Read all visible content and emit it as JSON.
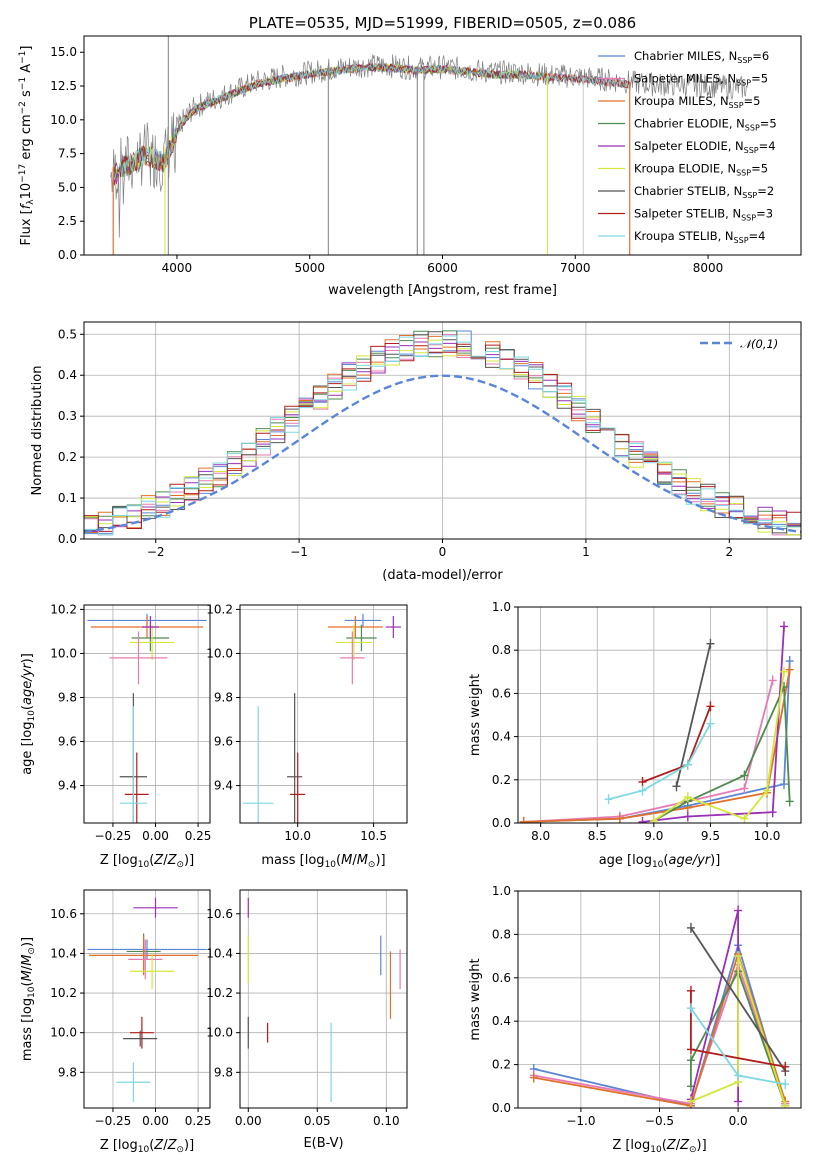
{
  "colors": {
    "Chabrier MILES": "#5b86d6",
    "Salpeter MILES": "#e67ab4",
    "Kroupa MILES": "#e0702a",
    "Chabrier ELODIE": "#4f8a50",
    "Salpeter ELODIE": "#9a2fb8",
    "Kroupa ELODIE": "#d4e63a",
    "Chabrier STELIB": "#555555",
    "Salpeter STELIB": "#b21c1c",
    "Kroupa STELIB": "#7fd8df"
  },
  "chart_data": [
    {
      "id": "spectrum",
      "type": "line",
      "title": "PLATE=0535, MJD=51999, FIBERID=0505, z=0.086",
      "xlabel": "wavelength [Angstrom, rest frame]",
      "ylabel": "Flux [f_λ 10^-17 erg cm^-2 s^-1 A^-1]",
      "xlim": [
        3300,
        8700
      ],
      "ylim": [
        0,
        16.2
      ],
      "xticks": [
        4000,
        5000,
        6000,
        7000,
        8000
      ],
      "yticks": [
        0.0,
        2.5,
        5.0,
        7.5,
        10.0,
        12.5,
        15.0
      ],
      "legend_position": "right",
      "legend": [
        {
          "model": "Chabrier MILES",
          "n": 6
        },
        {
          "model": "Salpeter MILES",
          "n": 5
        },
        {
          "model": "Kroupa MILES",
          "n": 5
        },
        {
          "model": "Chabrier ELODIE",
          "n": 5
        },
        {
          "model": "Salpeter ELODIE",
          "n": 4
        },
        {
          "model": "Kroupa ELODIE",
          "n": 5
        },
        {
          "model": "Chabrier STELIB",
          "n": 2
        },
        {
          "model": "Salpeter STELIB",
          "n": 3
        },
        {
          "model": "Kroupa STELIB",
          "n": 4
        }
      ],
      "continuum": {
        "x": [
          3500,
          3550,
          3600,
          3650,
          3700,
          3750,
          3800,
          3850,
          3900,
          3950,
          4000,
          4050,
          4100,
          4150,
          4200,
          4300,
          4400,
          4500,
          4600,
          4800,
          5000,
          5200,
          5400,
          5600,
          5800,
          6000,
          6200,
          6400,
          6600,
          6800,
          7000,
          7200,
          7400,
          7600,
          7800,
          8000,
          8200,
          8400
        ],
        "y": [
          5.8,
          6.2,
          6.7,
          6.8,
          7.2,
          7.5,
          7.4,
          7.2,
          7.0,
          8.0,
          9.3,
          10.0,
          10.6,
          11.0,
          11.2,
          11.6,
          12.0,
          12.4,
          12.8,
          13.2,
          13.5,
          13.8,
          14.0,
          14.0,
          13.8,
          13.9,
          13.7,
          13.5,
          13.5,
          13.3,
          13.2,
          13.0,
          12.8,
          12.6,
          12.6,
          12.5,
          12.4,
          12.3
        ]
      },
      "spikes": [
        {
          "x": 3935,
          "y0": 0,
          "y1": 16.2,
          "color": "#808080"
        },
        {
          "x": 3910,
          "y0": 0,
          "y1": 8.0,
          "color": "#d4e63a"
        },
        {
          "x": 5140,
          "y0": 0,
          "y1": 14.0,
          "color": "#808080"
        },
        {
          "x": 5810,
          "y0": 0,
          "y1": 14.0,
          "color": "#808080"
        },
        {
          "x": 5860,
          "y0": 0,
          "y1": 14.0,
          "color": "#808080"
        },
        {
          "x": 6790,
          "y0": 0,
          "y1": 13.5,
          "color": "#d4e63a"
        },
        {
          "x": 7060,
          "y0": 0,
          "y1": 13.2,
          "color": "#cccccc"
        }
      ],
      "observed_range": [
        3500,
        8300
      ],
      "model_range": [
        3520,
        7410
      ]
    },
    {
      "id": "residuals",
      "type": "bar",
      "xlabel": "(data-model)/error",
      "ylabel": "Normed distribution",
      "xlim": [
        -2.5,
        2.5
      ],
      "ylim": [
        0,
        0.53
      ],
      "xticks": [
        -2,
        -1,
        0,
        1,
        2
      ],
      "yticks": [
        0.0,
        0.1,
        0.2,
        0.3,
        0.4,
        0.5
      ],
      "reference": {
        "label": "𝒩(0,1)",
        "mean": 0,
        "sigma": 1,
        "color": "#5b86d6"
      },
      "legend_position": "top-right"
    },
    {
      "id": "age-Z",
      "type": "scatter",
      "xlabel": "Z [log10(Z/Z_sun)]",
      "ylabel": "age  [log10(age/yr)]",
      "xlim": [
        -0.42,
        0.32
      ],
      "ylim": [
        9.23,
        10.22
      ],
      "xticks": [
        -0.25,
        0.0,
        0.25
      ],
      "yticks": [
        9.4,
        9.6,
        9.8,
        10.0,
        10.2
      ],
      "points": [
        {
          "model": "Chabrier MILES",
          "x": -0.05,
          "y": 10.15,
          "xerr": 0.35,
          "yerr": 0.03
        },
        {
          "model": "Kroupa MILES",
          "x": -0.05,
          "y": 10.12,
          "xerr": 0.33,
          "yerr": 0.05
        },
        {
          "model": "Chabrier ELODIE",
          "x": -0.03,
          "y": 10.07,
          "xerr": 0.11,
          "yerr": 0.06
        },
        {
          "model": "Kroupa ELODIE",
          "x": -0.02,
          "y": 10.05,
          "xerr": 0.13,
          "yerr": 0.08
        },
        {
          "model": "Salpeter MILES",
          "x": -0.1,
          "y": 9.98,
          "xerr": 0.17,
          "yerr": 0.12
        },
        {
          "model": "Salpeter ELODIE",
          "x": -0.03,
          "y": 10.12,
          "xerr": 0.05,
          "yerr": 0.05
        },
        {
          "model": "Chabrier STELIB",
          "x": -0.13,
          "y": 9.44,
          "xerr": 0.08,
          "yerr": 0.38
        },
        {
          "model": "Salpeter STELIB",
          "x": -0.11,
          "y": 9.36,
          "xerr": 0.07,
          "yerr": 0.19
        },
        {
          "model": "Kroupa STELIB",
          "x": -0.13,
          "y": 9.32,
          "xerr": 0.08,
          "yerr": 0.44
        }
      ]
    },
    {
      "id": "age-mass",
      "type": "scatter",
      "xlabel": "mass [log10(M/M_sun)]",
      "ylabel": "",
      "xlim": [
        9.62,
        10.72
      ],
      "ylim": [
        9.23,
        10.22
      ],
      "xticks": [
        10.0,
        10.5
      ],
      "yticks": [
        9.4,
        9.6,
        9.8,
        10.0,
        10.2
      ],
      "points": [
        {
          "model": "Chabrier MILES",
          "x": 10.43,
          "y": 10.15,
          "xerr": 0.12,
          "yerr": 0.03
        },
        {
          "model": "Kroupa MILES",
          "x": 10.38,
          "y": 10.12,
          "xerr": 0.18,
          "yerr": 0.05
        },
        {
          "model": "Chabrier ELODIE",
          "x": 10.42,
          "y": 10.07,
          "xerr": 0.1,
          "yerr": 0.06
        },
        {
          "model": "Kroupa ELODIE",
          "x": 10.37,
          "y": 10.05,
          "xerr": 0.12,
          "yerr": 0.08
        },
        {
          "model": "Salpeter MILES",
          "x": 10.36,
          "y": 9.98,
          "xerr": 0.08,
          "yerr": 0.12
        },
        {
          "model": "Salpeter ELODIE",
          "x": 10.63,
          "y": 10.12,
          "xerr": 0.05,
          "yerr": 0.05
        },
        {
          "model": "Chabrier STELIB",
          "x": 9.98,
          "y": 9.44,
          "xerr": 0.05,
          "yerr": 0.38
        },
        {
          "model": "Salpeter STELIB",
          "x": 10.0,
          "y": 9.36,
          "xerr": 0.05,
          "yerr": 0.19
        },
        {
          "model": "Kroupa STELIB",
          "x": 9.74,
          "y": 9.32,
          "xerr": 0.1,
          "yerr": 0.44
        }
      ]
    },
    {
      "id": "weight-age",
      "type": "line",
      "xlabel": "age  [log10(age/yr)]",
      "ylabel": "mass weight",
      "xlim": [
        7.8,
        10.3
      ],
      "ylim": [
        0,
        1.0
      ],
      "xticks": [
        8.0,
        8.5,
        9.0,
        9.5,
        10.0
      ],
      "yticks": [
        0.0,
        0.2,
        0.4,
        0.6,
        0.8,
        1.0
      ],
      "series": [
        {
          "model": "Chabrier MILES",
          "x": [
            7.85,
            8.7,
            9.3,
            10.15,
            10.2
          ],
          "y": [
            0.005,
            0.02,
            0.08,
            0.18,
            0.75
          ]
        },
        {
          "model": "Salpeter MILES",
          "x": [
            7.85,
            8.7,
            9.3,
            9.8,
            10.05
          ],
          "y": [
            0.005,
            0.03,
            0.1,
            0.16,
            0.66
          ]
        },
        {
          "model": "Kroupa MILES",
          "x": [
            7.85,
            8.7,
            9.3,
            10.0,
            10.2
          ],
          "y": [
            0.005,
            0.02,
            0.07,
            0.14,
            0.71
          ]
        },
        {
          "model": "Chabrier ELODIE",
          "x": [
            9.0,
            9.3,
            9.8,
            10.15,
            10.2
          ],
          "y": [
            0.01,
            0.1,
            0.22,
            0.63,
            0.1
          ]
        },
        {
          "model": "Salpeter ELODIE",
          "x": [
            8.9,
            9.3,
            10.05,
            10.15
          ],
          "y": [
            0.005,
            0.03,
            0.05,
            0.91
          ]
        },
        {
          "model": "Kroupa ELODIE",
          "x": [
            9.0,
            9.3,
            9.8,
            10.0,
            10.15
          ],
          "y": [
            0.01,
            0.12,
            0.02,
            0.15,
            0.7
          ]
        },
        {
          "model": "Chabrier STELIB",
          "x": [
            9.2,
            9.5
          ],
          "y": [
            0.17,
            0.83
          ]
        },
        {
          "model": "Salpeter STELIB",
          "x": [
            8.9,
            9.3,
            9.5
          ],
          "y": [
            0.19,
            0.27,
            0.54
          ]
        },
        {
          "model": "Kroupa STELIB",
          "x": [
            8.6,
            8.9,
            9.3,
            9.5
          ],
          "y": [
            0.11,
            0.15,
            0.27,
            0.46
          ]
        }
      ]
    },
    {
      "id": "mass-Z",
      "type": "scatter",
      "xlabel": "Z [log10(Z/Z_sun)]",
      "ylabel": "mass [log10(M/M_sun)]",
      "xlim": [
        -0.42,
        0.32
      ],
      "ylim": [
        9.62,
        10.72
      ],
      "xticks": [
        -0.25,
        0.0,
        0.25
      ],
      "yticks": [
        9.8,
        10.0,
        10.2,
        10.4,
        10.6
      ],
      "points": [
        {
          "model": "Salpeter ELODIE",
          "x": 0.0,
          "y": 10.63,
          "xerr": 0.13,
          "yerr": 0.05
        },
        {
          "model": "Chabrier MILES",
          "x": -0.05,
          "y": 10.42,
          "xerr": 0.35,
          "yerr": 0.05
        },
        {
          "model": "Chabrier ELODIE",
          "x": -0.07,
          "y": 10.41,
          "xerr": 0.1,
          "yerr": 0.09
        },
        {
          "model": "Kroupa MILES",
          "x": -0.07,
          "y": 10.39,
          "xerr": 0.32,
          "yerr": 0.1
        },
        {
          "model": "Salpeter MILES",
          "x": -0.06,
          "y": 10.37,
          "xerr": 0.1,
          "yerr": 0.1
        },
        {
          "model": "Kroupa ELODIE",
          "x": -0.02,
          "y": 10.31,
          "xerr": 0.13,
          "yerr": 0.09
        },
        {
          "model": "Chabrier STELIB",
          "x": -0.09,
          "y": 9.97,
          "xerr": 0.1,
          "yerr": 0.04
        },
        {
          "model": "Salpeter STELIB",
          "x": -0.08,
          "y": 10.0,
          "xerr": 0.07,
          "yerr": 0.08
        },
        {
          "model": "Kroupa STELIB",
          "x": -0.13,
          "y": 9.75,
          "xerr": 0.1,
          "yerr": 0.1
        }
      ]
    },
    {
      "id": "mass-EBV",
      "type": "scatter",
      "xlabel": "E(B-V)",
      "ylabel": "",
      "xlim": [
        -0.006,
        0.115
      ],
      "ylim": [
        9.62,
        10.72
      ],
      "xticks": [
        0.0,
        0.05,
        0.1
      ],
      "yticks": [
        9.8,
        10.0,
        10.2,
        10.4,
        10.6
      ],
      "points": [
        {
          "model": "Salpeter ELODIE",
          "x": 0.0,
          "y": 10.63,
          "xerr": 0.0,
          "yerr": 0.05
        },
        {
          "model": "Kroupa ELODIE",
          "x": 0.0,
          "y": 10.37,
          "xerr": 0.0,
          "yerr": 0.12
        },
        {
          "model": "Chabrier STELIB",
          "x": 0.0,
          "y": 10.0,
          "xerr": 0.0,
          "yerr": 0.08
        },
        {
          "model": "Salpeter STELIB",
          "x": 0.014,
          "y": 10.0,
          "xerr": 0.0,
          "yerr": 0.05
        },
        {
          "model": "Kroupa STELIB",
          "x": 0.06,
          "y": 9.85,
          "xerr": 0.0,
          "yerr": 0.2
        },
        {
          "model": "Chabrier MILES",
          "x": 0.096,
          "y": 10.39,
          "xerr": 0.0,
          "yerr": 0.1
        },
        {
          "model": "Kroupa MILES",
          "x": 0.103,
          "y": 10.24,
          "xerr": 0.0,
          "yerr": 0.17
        },
        {
          "model": "Salpeter MILES",
          "x": 0.11,
          "y": 10.32,
          "xerr": 0.0,
          "yerr": 0.1
        }
      ]
    },
    {
      "id": "weight-Z",
      "type": "line",
      "xlabel": "Z [log10(Z/Z_sun)]",
      "ylabel": "mass weight",
      "xlim": [
        -1.4,
        0.4
      ],
      "ylim": [
        0,
        1.0
      ],
      "xticks": [
        -1.0,
        -0.5,
        0.0
      ],
      "yticks": [
        0.0,
        0.2,
        0.4,
        0.6,
        0.8,
        1.0
      ],
      "series": [
        {
          "model": "Chabrier MILES",
          "x": [
            -1.3,
            -0.3,
            0.0,
            0.3
          ],
          "y": [
            0.18,
            0.01,
            0.75,
            0.02
          ]
        },
        {
          "model": "Salpeter MILES",
          "x": [
            -1.3,
            -0.3,
            0.0,
            0.3
          ],
          "y": [
            0.15,
            0.02,
            0.66,
            0.02
          ]
        },
        {
          "model": "Kroupa MILES",
          "x": [
            -1.3,
            -0.3,
            0.0,
            0.3
          ],
          "y": [
            0.14,
            0.01,
            0.71,
            0.03
          ]
        },
        {
          "model": "Chabrier ELODIE",
          "x": [
            -0.3,
            -0.3,
            0.0,
            0.3
          ],
          "y": [
            0.1,
            0.22,
            0.63,
            0.01
          ]
        },
        {
          "model": "Salpeter ELODIE",
          "x": [
            -0.3,
            0.0,
            0.0
          ],
          "y": [
            0.04,
            0.91,
            0.03
          ]
        },
        {
          "model": "Kroupa ELODIE",
          "x": [
            -0.3,
            0.0,
            0.0,
            0.3
          ],
          "y": [
            0.03,
            0.12,
            0.7,
            0.01
          ]
        },
        {
          "model": "Chabrier STELIB",
          "x": [
            -0.3,
            0.3
          ],
          "y": [
            0.83,
            0.17
          ]
        },
        {
          "model": "Salpeter STELIB",
          "x": [
            -0.3,
            -0.3,
            0.3
          ],
          "y": [
            0.54,
            0.27,
            0.19
          ]
        },
        {
          "model": "Kroupa STELIB",
          "x": [
            -0.3,
            0.0,
            0.3
          ],
          "y": [
            0.46,
            0.15,
            0.11
          ]
        }
      ]
    }
  ]
}
